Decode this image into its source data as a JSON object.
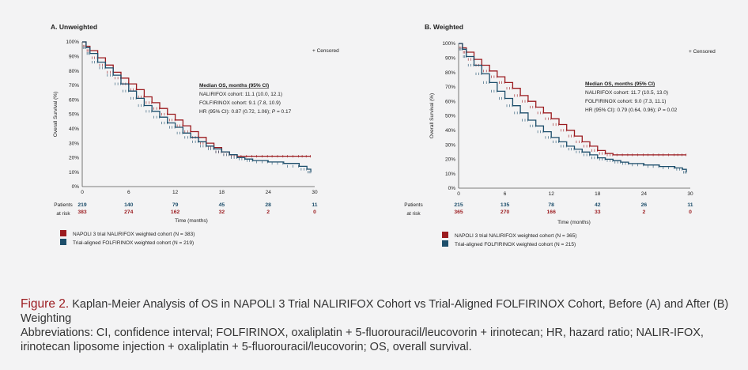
{
  "colors": {
    "nalirifox": "#9b1b1f",
    "folfirinox": "#1d4e6b",
    "background": "#f3f3f4"
  },
  "caption": {
    "label": "Figure 2.",
    "title": "Kaplan-Meier Analysis of OS in NAPOLI 3 Trial NALIRIFOX Cohort vs Trial-Aligned FOLFIRINOX Cohort, Before (A) and After (B) Weighting",
    "abbreviations": "Abbreviations: CI, confidence interval; FOLFIRINOX, oxaliplatin + 5-fluorouracil/leucovorin + irinotecan; HR, hazard ratio; NALIR-IFOX, irinotecan liposome injection + oxaliplatin + 5-fluorouracil/leucovorin; OS, overall survival."
  },
  "chart_data": [
    {
      "type": "line",
      "title": "A. Unweighted",
      "xlabel": "Time (months)",
      "ylabel": "Overall Survival (%)",
      "xlim": [
        0,
        30
      ],
      "ylim": [
        0,
        100
      ],
      "x_ticks": [
        0,
        6,
        12,
        18,
        24,
        30
      ],
      "y_ticks": [
        "0%",
        "10%",
        "20%",
        "30%",
        "40%",
        "50%",
        "60%",
        "70%",
        "80%",
        "90%",
        "100%"
      ],
      "censored_label": "+ Censored",
      "stats": {
        "heading": "Median OS, months (95% CI)",
        "line1": "NALIRIFOX cohort: 11.1 (10.0, 12.1)",
        "line2": "FOLFIRINOX cohort: 9.1 (7.8, 10.9)",
        "line3_prefix": "HR (95% CI): 0.87 (0.72, 1.06);",
        "p_label": "P",
        "p_value": "= 0.17"
      },
      "risk_table": {
        "label_line1": "Patients",
        "label_line2": "at risk",
        "folfirinox": [
          "219",
          "140",
          "79",
          "45",
          "28",
          "11"
        ],
        "nalirifox": [
          "383",
          "274",
          "162",
          "32",
          "2",
          "0"
        ]
      },
      "legend": [
        "NAPOLI 3 trial NALIRIFOX weighted cohort (N = 383)",
        "Trial-aligned FOLFIRINOX weighted cohort (N = 219)"
      ],
      "series": [
        {
          "name": "NALIRIFOX",
          "x": [
            0,
            0.5,
            1,
            2,
            3,
            4,
            5,
            6,
            7,
            8,
            9,
            10,
            11,
            12,
            13,
            14,
            15,
            16,
            17,
            18,
            19,
            20,
            22,
            24,
            26,
            28,
            29.5
          ],
          "y": [
            100,
            97,
            94,
            89,
            84,
            79,
            75,
            71,
            67,
            62,
            58,
            54,
            50,
            46,
            42,
            38,
            34,
            30,
            27,
            24,
            22,
            21,
            21,
            21,
            21,
            21,
            21
          ]
        },
        {
          "name": "FOLFIRINOX",
          "x": [
            0,
            0.5,
            1,
            2,
            3,
            4,
            5,
            6,
            7,
            8,
            9,
            10,
            11,
            12,
            13,
            14,
            15,
            16,
            17,
            18,
            19,
            20,
            21,
            22,
            24,
            26,
            28,
            29,
            29.5
          ],
          "y": [
            100,
            96,
            92,
            86,
            82,
            77,
            71,
            66,
            61,
            56,
            52,
            48,
            44,
            41,
            37,
            34,
            31,
            28,
            26,
            24,
            22,
            20,
            19,
            18,
            17,
            16,
            14,
            12,
            10
          ]
        }
      ]
    },
    {
      "type": "line",
      "title": "B. Weighted",
      "xlabel": "Time (months)",
      "ylabel": "Overall Survival (%)",
      "xlim": [
        0,
        30
      ],
      "ylim": [
        0,
        100
      ],
      "x_ticks": [
        0,
        6,
        12,
        18,
        24,
        30
      ],
      "y_ticks": [
        "0%",
        "10%",
        "20%",
        "30%",
        "40%",
        "50%",
        "60%",
        "70%",
        "80%",
        "90%",
        "100%"
      ],
      "censored_label": "+ Censored",
      "stats": {
        "heading": "Median OS, months (95% CI)",
        "line1": "NALIRIFOX cohort: 11.7 (10.5, 13.0)",
        "line2": "FOLFIRINOX cohort: 9.0 (7.3, 11.1)",
        "line3_prefix": "HR (95% CI): 0.79 (0.64, 0.96);",
        "p_label": "P",
        "p_value": "= 0.02"
      },
      "risk_table": {
        "label_line1": "Patients",
        "label_line2": "at risk",
        "folfirinox": [
          "215",
          "135",
          "78",
          "42",
          "26",
          "11"
        ],
        "nalirifox": [
          "365",
          "270",
          "166",
          "33",
          "2",
          "0"
        ]
      },
      "legend": [
        "NAPOLI 3 trial NALIRIFOX weighted cohort (N = 365)",
        "Trial-aligned FOLFIRINOX weighted cohort (N = 215)"
      ],
      "series": [
        {
          "name": "NALIRIFOX",
          "x": [
            0,
            0.5,
            1,
            2,
            3,
            4,
            5,
            6,
            7,
            8,
            9,
            10,
            11,
            12,
            13,
            14,
            15,
            16,
            17,
            18,
            19,
            20,
            22,
            24,
            26,
            28,
            29.5
          ],
          "y": [
            100,
            97,
            94,
            89,
            85,
            81,
            77,
            73,
            69,
            64,
            60,
            56,
            52,
            48,
            44,
            40,
            36,
            32,
            29,
            26,
            24,
            23,
            23,
            23,
            23,
            23,
            23
          ]
        },
        {
          "name": "FOLFIRINOX",
          "x": [
            0,
            0.5,
            1,
            2,
            3,
            4,
            5,
            6,
            7,
            8,
            9,
            10,
            11,
            12,
            13,
            14,
            15,
            16,
            17,
            18,
            19,
            20,
            21,
            22,
            24,
            26,
            28,
            29,
            29.5
          ],
          "y": [
            100,
            96,
            91,
            85,
            79,
            73,
            67,
            62,
            57,
            52,
            47,
            43,
            39,
            35,
            32,
            29,
            27,
            25,
            23,
            21,
            20,
            19,
            18,
            17,
            16,
            15,
            14,
            13,
            11
          ]
        }
      ]
    }
  ]
}
